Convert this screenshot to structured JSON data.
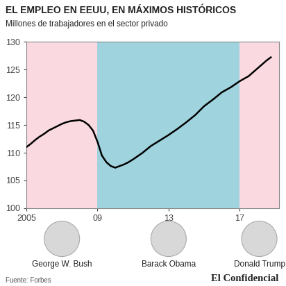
{
  "chart_data": {
    "type": "line",
    "title": "EL EMPLEO EN EEUU, EN MÁXIMOS HISTÓRICOS",
    "subtitle": "Millones de trabajadores en el sector privado",
    "x": [
      2005.0,
      2005.25,
      2005.5,
      2005.75,
      2006.0,
      2006.25,
      2006.5,
      2006.75,
      2007.0,
      2007.25,
      2007.5,
      2007.75,
      2008.0,
      2008.25,
      2008.5,
      2008.75,
      2009.0,
      2009.25,
      2009.5,
      2009.75,
      2010.0,
      2010.25,
      2010.5,
      2010.75,
      2011.0,
      2011.5,
      2012.0,
      2012.5,
      2013.0,
      2013.5,
      2014.0,
      2014.5,
      2015.0,
      2015.5,
      2016.0,
      2016.5,
      2017.0,
      2017.5,
      2018.0,
      2018.5,
      2018.75
    ],
    "values": [
      111.0,
      111.6,
      112.3,
      112.9,
      113.4,
      114.0,
      114.4,
      114.8,
      115.2,
      115.5,
      115.7,
      115.8,
      115.9,
      115.6,
      115.0,
      114.0,
      112.0,
      109.5,
      108.3,
      107.6,
      107.3,
      107.6,
      107.9,
      108.3,
      108.8,
      109.9,
      111.2,
      112.2,
      113.2,
      114.3,
      115.5,
      116.8,
      118.4,
      119.6,
      120.9,
      121.8,
      122.9,
      123.8,
      125.2,
      126.6,
      127.2
    ],
    "color": "#000000",
    "xlim": [
      2005,
      2019.2
    ],
    "ylim": [
      100,
      130
    ],
    "xticks": [
      2005,
      {
        "value": 2009,
        "label": "09"
      },
      {
        "value": 2013,
        "label": "13"
      },
      {
        "value": 2017,
        "label": "17"
      }
    ],
    "yticks": [
      100,
      105,
      110,
      115,
      120,
      125,
      130
    ],
    "periods": [
      {
        "name": "George W. Bush",
        "start": 2005,
        "end": 2009,
        "color": "#fbd9e1"
      },
      {
        "name": "Barack Obama",
        "start": 2009,
        "end": 2017,
        "color": "#9fd3de"
      },
      {
        "name": "Donald Trump",
        "start": 2017,
        "end": 2019.2,
        "color": "#fbd9e1"
      }
    ],
    "source": "Fuente: Forbes",
    "brand": "El Confidencial"
  }
}
